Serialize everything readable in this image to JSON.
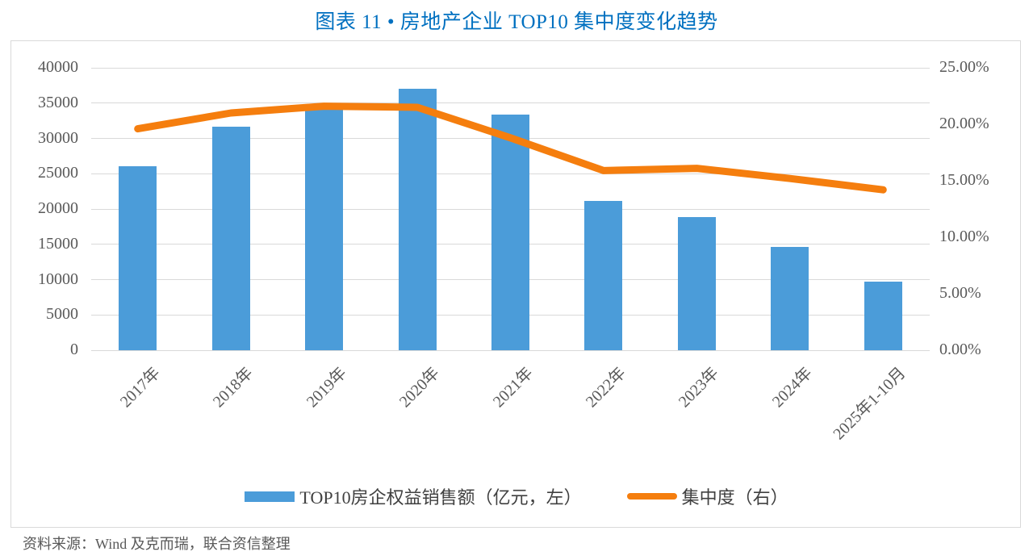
{
  "title": "图表 11 • 房地产企业 TOP10 集中度变化趋势",
  "title_color": "#0070C0",
  "source_note": "资料来源：Wind 及克而瑞，联合资信整理",
  "chart_data": {
    "type": "combo-bar-line",
    "title": "图表 11 • 房地产企业 TOP10 集中度变化趋势",
    "categories": [
      "2017年",
      "2018年",
      "2019年",
      "2020年",
      "2021年",
      "2022年",
      "2023年",
      "2024年",
      "2025年1-10月"
    ],
    "series": [
      {
        "name": "TOP10房企权益销售额（亿元，左）",
        "type": "bar",
        "axis": "left",
        "color": "#4B9CD9",
        "values": [
          26100,
          31650,
          34100,
          37000,
          33400,
          21150,
          18850,
          14650,
          9700
        ]
      },
      {
        "name": "集中度（右）",
        "type": "line",
        "axis": "right",
        "color": "#F57E0E",
        "values": [
          19.6,
          21.0,
          21.6,
          21.5,
          18.8,
          15.9,
          16.1,
          15.2,
          14.2
        ]
      }
    ],
    "left_axis": {
      "min": 0,
      "max": 40000,
      "step": 5000,
      "ticks_top_down": [
        "40000",
        "35000",
        "30000",
        "25000",
        "20000",
        "15000",
        "10000",
        "5000",
        "0"
      ]
    },
    "right_axis": {
      "min": 0,
      "max": 25,
      "step": 5,
      "ticks_top_down": [
        "25.00%",
        "20.00%",
        "15.00%",
        "10.00%",
        "5.00%",
        "0.00%"
      ]
    },
    "grid": true,
    "gridline_color": "#d9d9d9",
    "legend_position": "bottom"
  }
}
